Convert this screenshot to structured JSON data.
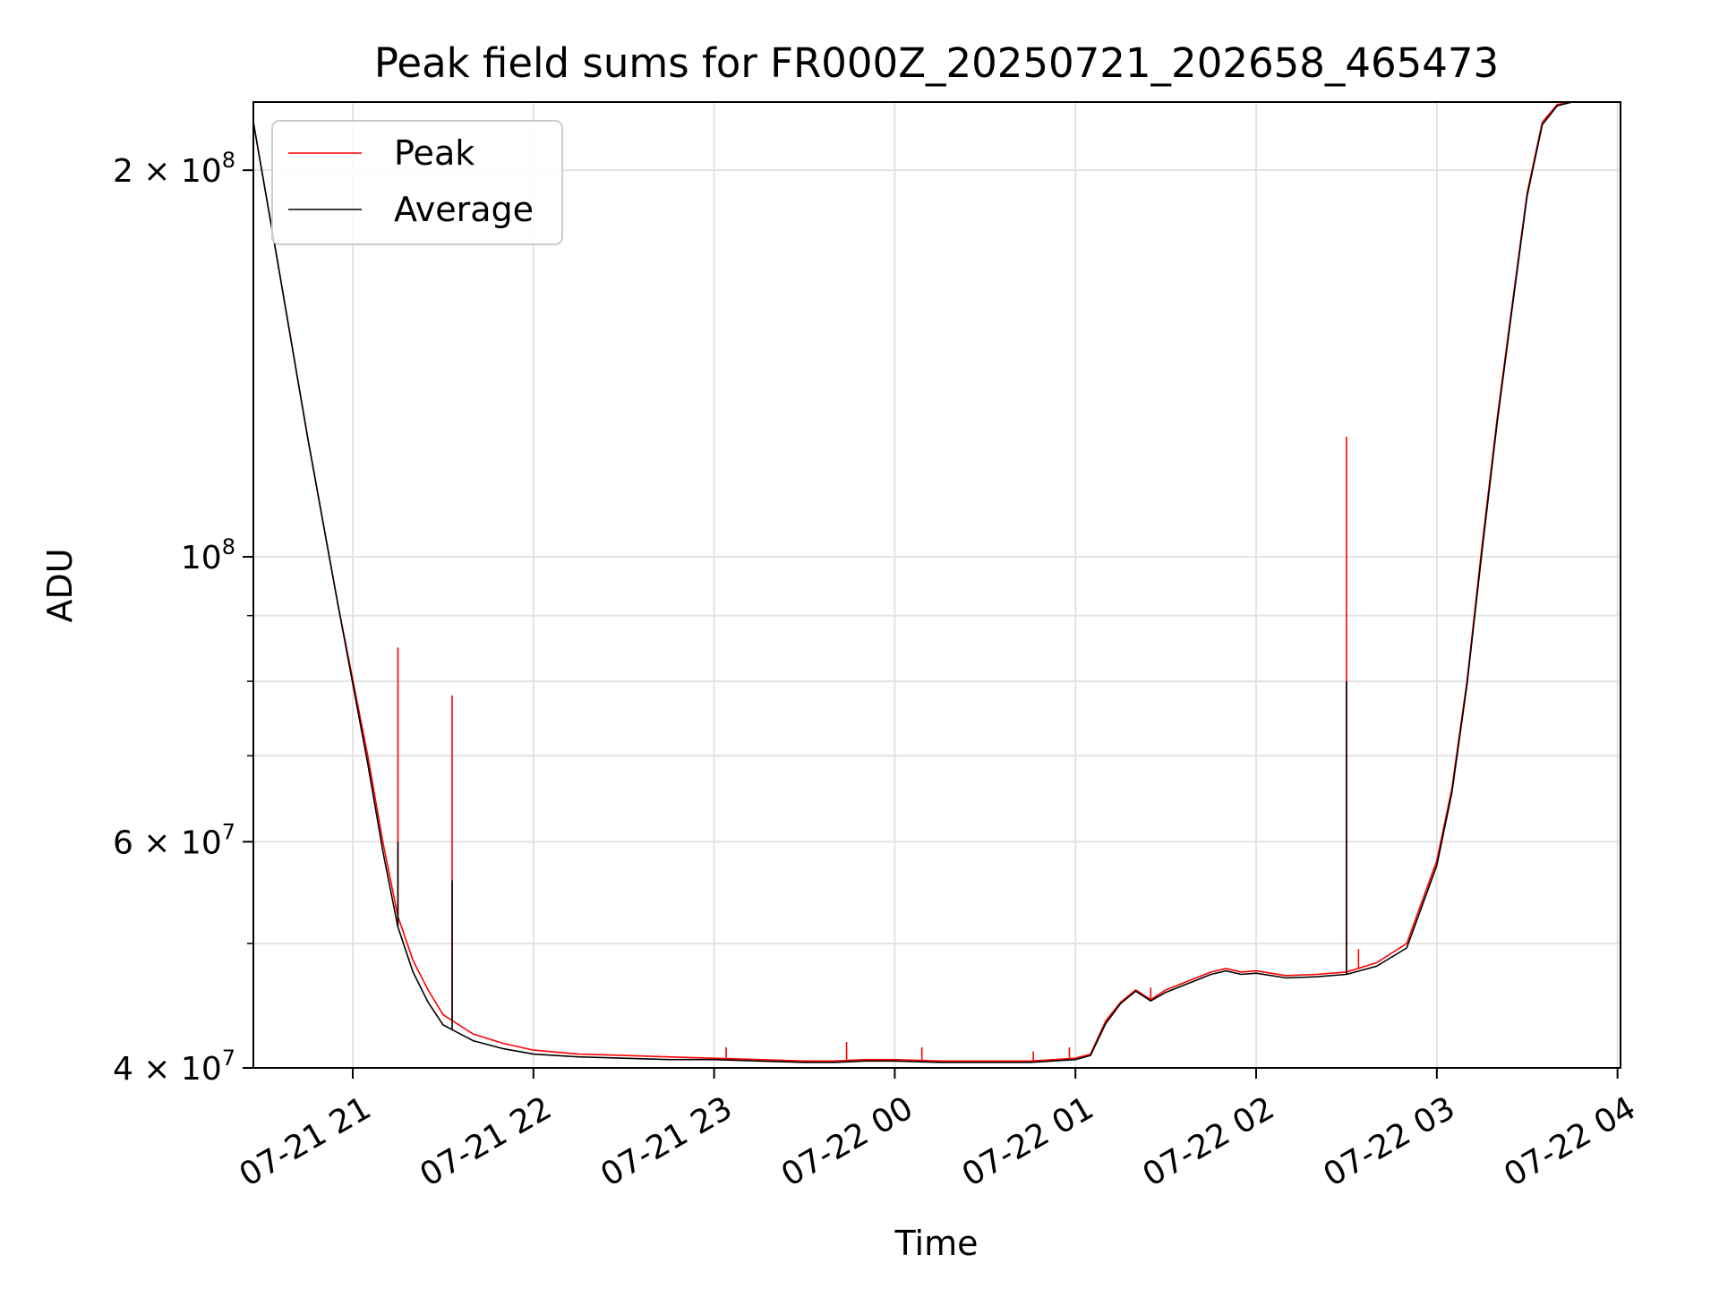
{
  "chart_data": {
    "type": "line",
    "title": "Peak field sums for FR000Z_20250721_202658_465473",
    "xlabel": "Time",
    "ylabel": "ADU",
    "yscale": "log",
    "ylim": [
      40000000,
      226000000
    ],
    "xlim": [
      "2025-07-21 20:27",
      "2025-07-22 04:01"
    ],
    "grid": true,
    "legend_position": "top-left",
    "x_tick_labels": [
      "07-21 21",
      "07-21 22",
      "07-21 23",
      "07-22 00",
      "07-22 01",
      "07-22 02",
      "07-22 03",
      "07-22 04"
    ],
    "y_tick_labels": [
      {
        "value": 40000000,
        "base": "4 × 10",
        "exp": "7"
      },
      {
        "value": 60000000,
        "base": "6 × 10",
        "exp": "7"
      },
      {
        "value": 100000000,
        "base": "10",
        "exp": "8"
      },
      {
        "value": 200000000,
        "base": "2 × 10",
        "exp": "8"
      }
    ],
    "series": [
      {
        "name": "Peak",
        "color": "#ff0000",
        "x": [
          "2025-07-21 20:27",
          "2025-07-21 20:35",
          "2025-07-21 20:45",
          "2025-07-21 20:55",
          "2025-07-21 21:05",
          "2025-07-21 21:10",
          "2025-07-21 21:15",
          "2025-07-21 21:20",
          "2025-07-21 21:25",
          "2025-07-21 21:30",
          "2025-07-21 21:40",
          "2025-07-21 21:50",
          "2025-07-21 22:00",
          "2025-07-21 22:15",
          "2025-07-21 22:30",
          "2025-07-21 22:45",
          "2025-07-21 23:00",
          "2025-07-21 23:15",
          "2025-07-21 23:30",
          "2025-07-21 23:40",
          "2025-07-21 23:50",
          "2025-07-22 00:00",
          "2025-07-22 00:15",
          "2025-07-22 00:30",
          "2025-07-22 00:45",
          "2025-07-22 01:00",
          "2025-07-22 01:05",
          "2025-07-22 01:10",
          "2025-07-22 01:15",
          "2025-07-22 01:20",
          "2025-07-22 01:25",
          "2025-07-22 01:30",
          "2025-07-22 01:35",
          "2025-07-22 01:40",
          "2025-07-22 01:45",
          "2025-07-22 01:50",
          "2025-07-22 01:55",
          "2025-07-22 02:00",
          "2025-07-22 02:10",
          "2025-07-22 02:20",
          "2025-07-22 02:30",
          "2025-07-22 02:40",
          "2025-07-22 02:50",
          "2025-07-22 03:00",
          "2025-07-22 03:05",
          "2025-07-22 03:10",
          "2025-07-22 03:15",
          "2025-07-22 03:20",
          "2025-07-22 03:25",
          "2025-07-22 03:30",
          "2025-07-22 03:35",
          "2025-07-22 03:40",
          "2025-07-22 03:45"
        ],
        "y": [
          218000000,
          170000000,
          124000000,
          92000000,
          70000000,
          60000000,
          52500000,
          48500000,
          46000000,
          44000000,
          42500000,
          41800000,
          41300000,
          41000000,
          40900000,
          40800000,
          40700000,
          40600000,
          40500000,
          40500000,
          40600000,
          40600000,
          40500000,
          40500000,
          40500000,
          40700000,
          41000000,
          43500000,
          45000000,
          46000000,
          45200000,
          46000000,
          46500000,
          47000000,
          47500000,
          47800000,
          47500000,
          47600000,
          47200000,
          47300000,
          47500000,
          48300000,
          50000000,
          58000000,
          66000000,
          80000000,
          102000000,
          128000000,
          157000000,
          192000000,
          218000000,
          225000000,
          226000000
        ]
      },
      {
        "name": "Average",
        "color": "#000000",
        "x": [
          "2025-07-21 20:27",
          "2025-07-21 20:35",
          "2025-07-21 20:45",
          "2025-07-21 20:55",
          "2025-07-21 21:05",
          "2025-07-21 21:10",
          "2025-07-21 21:15",
          "2025-07-21 21:20",
          "2025-07-21 21:25",
          "2025-07-21 21:30",
          "2025-07-21 21:40",
          "2025-07-21 21:50",
          "2025-07-21 22:00",
          "2025-07-21 22:15",
          "2025-07-21 22:30",
          "2025-07-21 22:45",
          "2025-07-21 23:00",
          "2025-07-21 23:15",
          "2025-07-21 23:30",
          "2025-07-21 23:40",
          "2025-07-21 23:50",
          "2025-07-22 00:00",
          "2025-07-22 00:15",
          "2025-07-22 00:30",
          "2025-07-22 00:45",
          "2025-07-22 01:00",
          "2025-07-22 01:05",
          "2025-07-22 01:10",
          "2025-07-22 01:15",
          "2025-07-22 01:20",
          "2025-07-22 01:25",
          "2025-07-22 01:30",
          "2025-07-22 01:35",
          "2025-07-22 01:40",
          "2025-07-22 01:45",
          "2025-07-22 01:50",
          "2025-07-22 01:55",
          "2025-07-22 02:00",
          "2025-07-22 02:10",
          "2025-07-22 02:20",
          "2025-07-22 02:30",
          "2025-07-22 02:40",
          "2025-07-22 02:50",
          "2025-07-22 03:00",
          "2025-07-22 03:05",
          "2025-07-22 03:10",
          "2025-07-22 03:15",
          "2025-07-22 03:20",
          "2025-07-22 03:25",
          "2025-07-22 03:30",
          "2025-07-22 03:35",
          "2025-07-22 03:40",
          "2025-07-22 03:45"
        ],
        "y": [
          218000000,
          170000000,
          124000000,
          92000000,
          69000000,
          59000000,
          51500000,
          47500000,
          45000000,
          43200000,
          42000000,
          41400000,
          41000000,
          40800000,
          40700000,
          40600000,
          40600000,
          40500000,
          40400000,
          40400000,
          40500000,
          40500000,
          40400000,
          40400000,
          40400000,
          40600000,
          40900000,
          43300000,
          44900000,
          45900000,
          45100000,
          45800000,
          46300000,
          46800000,
          47300000,
          47600000,
          47300000,
          47400000,
          47000000,
          47100000,
          47300000,
          48000000,
          49600000,
          57500000,
          65500000,
          79500000,
          101000000,
          127000000,
          156000000,
          191000000,
          217000000,
          224500000,
          226000000
        ]
      }
    ],
    "spikes": [
      {
        "series": "Peak",
        "x": "2025-07-21 21:15",
        "y": 85000000
      },
      {
        "series": "Peak",
        "x": "2025-07-21 21:33",
        "y": 78000000
      },
      {
        "series": "Peak",
        "x": "2025-07-22 02:30",
        "y": 124000000
      },
      {
        "series": "Peak",
        "x": "2025-07-22 02:34",
        "y": 49500000
      },
      {
        "series": "Peak",
        "x": "2025-07-21 23:04",
        "y": 41500000
      },
      {
        "series": "Peak",
        "x": "2025-07-21 23:44",
        "y": 41900000
      },
      {
        "series": "Peak",
        "x": "2025-07-22 00:09",
        "y": 41500000
      },
      {
        "series": "Peak",
        "x": "2025-07-22 00:46",
        "y": 41200000
      },
      {
        "series": "Peak",
        "x": "2025-07-22 00:58",
        "y": 41500000
      },
      {
        "series": "Peak",
        "x": "2025-07-22 01:25",
        "y": 46200000
      },
      {
        "series": "Average",
        "x": "2025-07-21 21:15",
        "y": 60000000
      },
      {
        "series": "Average",
        "x": "2025-07-21 21:33",
        "y": 56000000
      },
      {
        "series": "Average",
        "x": "2025-07-22 02:30",
        "y": 80000000
      }
    ]
  }
}
